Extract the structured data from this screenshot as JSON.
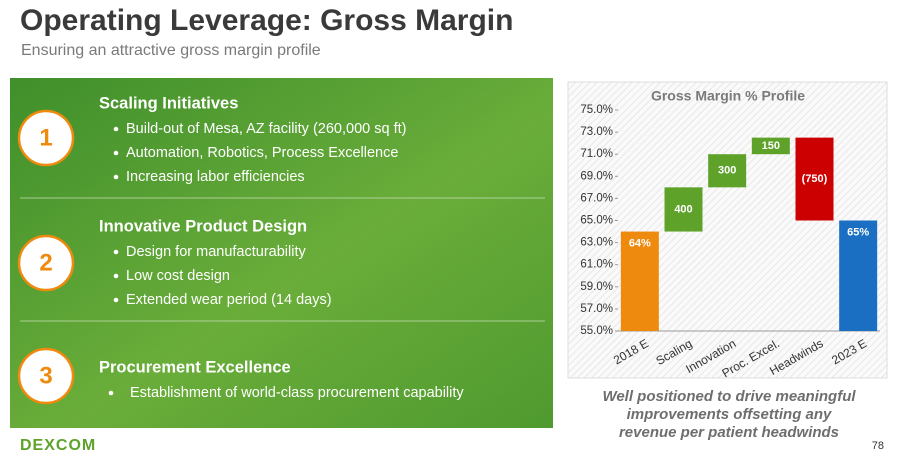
{
  "header": {
    "title": "Operating Leverage: Gross Margin",
    "subtitle": "Ensuring an attractive gross margin profile"
  },
  "sections": [
    {
      "number": "1",
      "heading": "Scaling Initiatives",
      "bullets": [
        "Build-out of Mesa, AZ facility (260,000 sq ft)",
        "Automation, Robotics, Process Excellence",
        "Increasing labor efficiencies"
      ]
    },
    {
      "number": "2",
      "heading": "Innovative Product Design",
      "bullets": [
        "Design for manufacturability",
        "Low cost design",
        "Extended wear period (14 days)"
      ]
    },
    {
      "number": "3",
      "heading": "Procurement Excellence",
      "bullets": [
        "Establishment of world-class procurement capability"
      ]
    }
  ],
  "chart_data": {
    "type": "waterfall",
    "title": "Gross Margin % Profile",
    "categories": [
      "2018 E",
      "Scaling",
      "Innovation",
      "Proc. Excel.",
      "Headwinds",
      "2023 E"
    ],
    "values": [
      64,
      4,
      3,
      1.5,
      -7.5,
      65
    ],
    "value_labels": [
      "64%",
      "400",
      "300",
      "150",
      "(750)",
      "65%"
    ],
    "colors": [
      "#ee8a0e",
      "#5ea22a",
      "#5ea22a",
      "#5ea22a",
      "#cc0000",
      "#1a6fc2"
    ],
    "ylim": [
      55,
      75
    ],
    "yticks": [
      {
        "value": 55,
        "label": "55.0%"
      },
      {
        "value": 57,
        "label": "57.0%"
      },
      {
        "value": 59,
        "label": "59.0%"
      },
      {
        "value": 61,
        "label": "61.0%"
      },
      {
        "value": 63,
        "label": "63.0%"
      },
      {
        "value": 65,
        "label": "65.0%"
      },
      {
        "value": 67,
        "label": "67.0%"
      },
      {
        "value": 69,
        "label": "69.0%"
      },
      {
        "value": 71,
        "label": "71.0%"
      },
      {
        "value": 73,
        "label": "73.0%"
      },
      {
        "value": 75,
        "label": "75.0%"
      }
    ]
  },
  "caption": [
    "Well positioned to drive meaningful",
    "improvements offsetting any",
    "revenue per patient headwinds"
  ],
  "footer": {
    "logo": "DEXCOM",
    "page": "78"
  }
}
